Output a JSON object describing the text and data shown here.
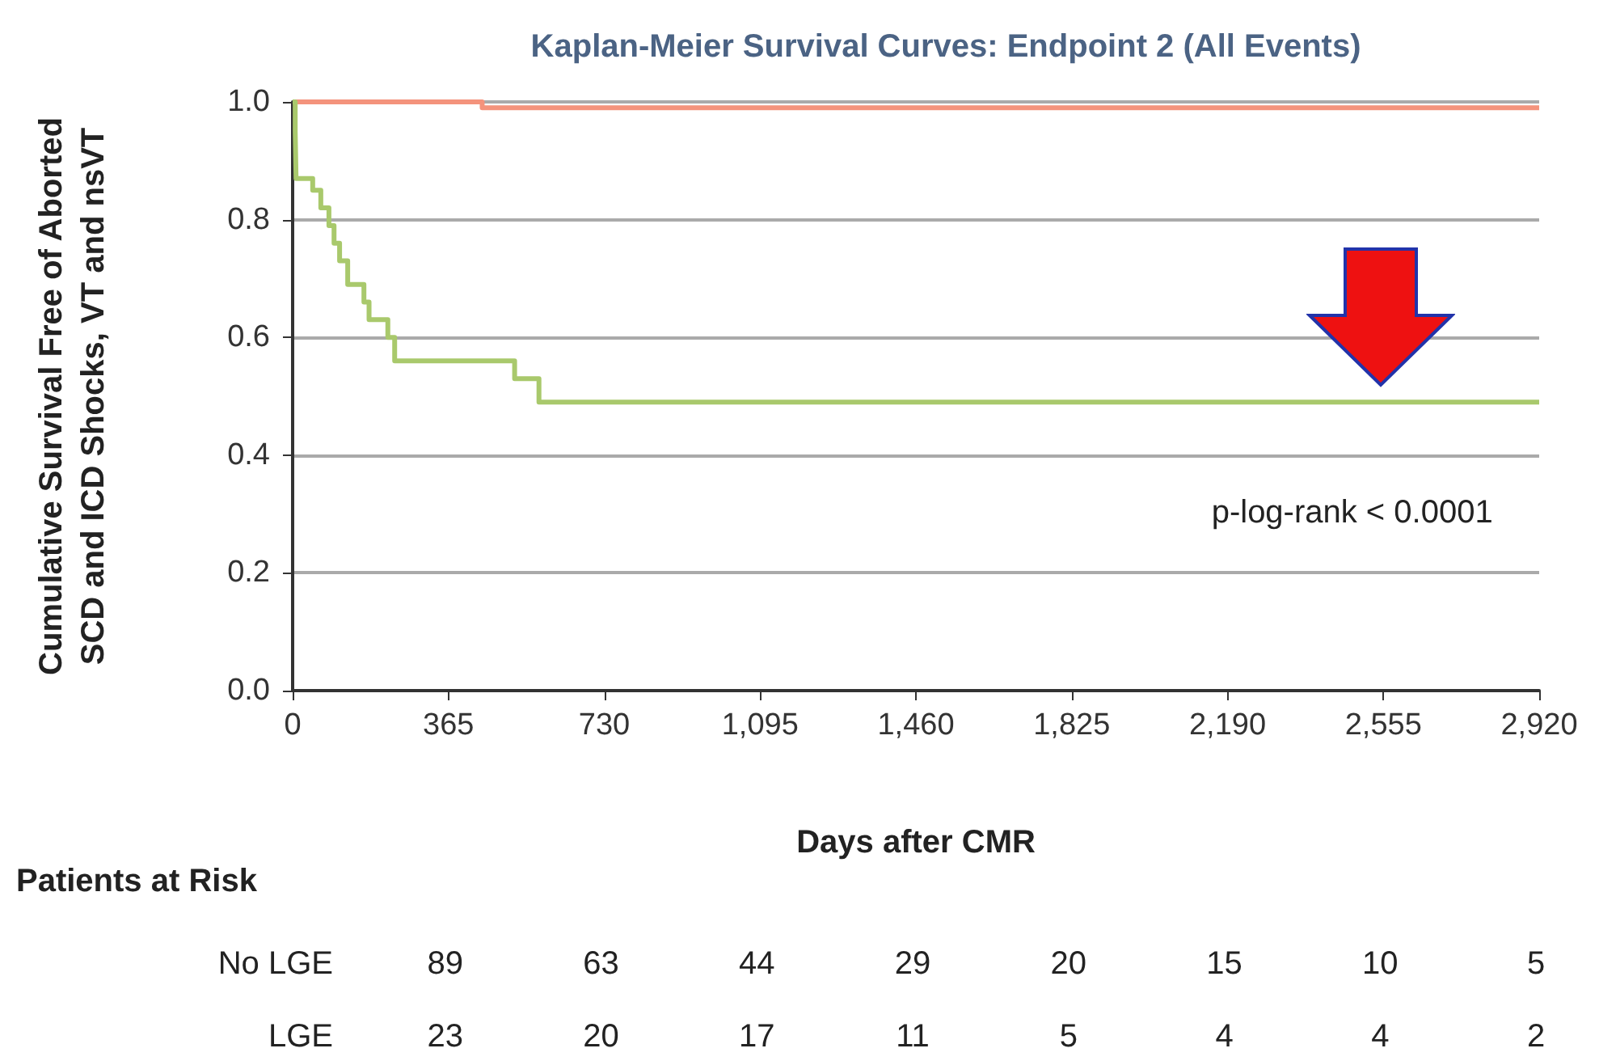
{
  "chart_data": {
    "type": "step",
    "title": "Kaplan-Meier Survival Curves: Endpoint 2 (All Events)",
    "xlabel": "Days after CMR",
    "ylabel": "Cumulative Survival Free of Aborted\nSCD and ICD Shocks, VT and nsVT",
    "series": [
      {
        "color": "#f4937c",
        "x": [
          0,
          444,
          2920
        ],
        "values": [
          1.0,
          0.99,
          0.99
        ]
      },
      {
        "color": "#a9c96c",
        "x": [
          0,
          6,
          8,
          47,
          66,
          85,
          97,
          110,
          129,
          167,
          179,
          223,
          239,
          520,
          577,
          2920
        ],
        "values": [
          1.0,
          0.95,
          0.87,
          0.85,
          0.82,
          0.79,
          0.76,
          0.73,
          0.69,
          0.66,
          0.63,
          0.6,
          0.56,
          0.53,
          0.49,
          0.49
        ]
      }
    ],
    "xlim": [
      0,
      2920
    ],
    "xticks": [
      0,
      365,
      730,
      {
        "value": 1095,
        "label": "1,095"
      },
      {
        "value": 1460,
        "label": "1,460"
      },
      {
        "value": 1825,
        "label": "1,825"
      },
      {
        "value": 2190,
        "label": "2,190"
      },
      {
        "value": 2555,
        "label": "2,555"
      },
      {
        "value": 2920,
        "label": "2,920"
      }
    ],
    "ylim": [
      0,
      1
    ],
    "yticks": [
      {
        "value": 0,
        "label": "0.0"
      },
      {
        "value": 0.2,
        "label": "0.2"
      },
      {
        "value": 0.4,
        "label": "0.4"
      },
      {
        "value": 0.6,
        "label": "0.6"
      },
      {
        "value": 0.8,
        "label": "0.8"
      },
      {
        "value": 1,
        "label": "1.0"
      }
    ],
    "grid": "y",
    "marker": "none",
    "line_style": "solid",
    "annotations": [
      "p-log-rank < 0.0001",
      "Patients at Risk",
      "No LGE",
      "89",
      "63",
      "44",
      "29",
      "20",
      "15",
      "10",
      "5",
      "LGE",
      "23",
      "20",
      "17",
      "11",
      "5",
      "4",
      "4",
      "2"
    ]
  }
}
